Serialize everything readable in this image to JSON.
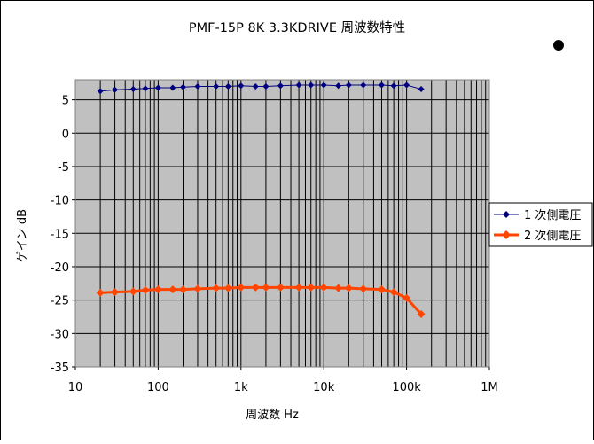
{
  "chart_data": {
    "type": "line",
    "title": "PMF-15P 8K  3.3KDRIVE 周波数特性",
    "xlabel": "周波数 Hz",
    "ylabel": "ゲイン dB",
    "x_scale": "log",
    "xlim": [
      10,
      1000000
    ],
    "ylim": [
      -35,
      8
    ],
    "x_tick_values": [
      10,
      100,
      1000,
      10000,
      100000,
      1000000
    ],
    "x_tick_labels": [
      "10",
      "100",
      "1k",
      "10k",
      "100k",
      "1M"
    ],
    "y_ticks": [
      5,
      0,
      -5,
      -10,
      -15,
      -20,
      -25,
      -30,
      -35
    ],
    "grid": true,
    "legend_position": "right",
    "x": [
      20,
      30,
      50,
      70,
      100,
      150,
      200,
      300,
      500,
      700,
      1000,
      1500,
      2000,
      3000,
      5000,
      7000,
      10000,
      15000,
      20000,
      30000,
      50000,
      70000,
      100000,
      150000
    ],
    "series": [
      {
        "name": "1 次側電圧",
        "color": "#000080",
        "marker": "diamond",
        "values": [
          6.3,
          6.5,
          6.6,
          6.7,
          6.8,
          6.8,
          6.9,
          7.0,
          7.0,
          7.0,
          7.1,
          7.0,
          7.0,
          7.1,
          7.2,
          7.2,
          7.2,
          7.1,
          7.2,
          7.2,
          7.2,
          7.1,
          7.2,
          6.6
        ]
      },
      {
        "name": "2 次側電圧",
        "color": "#ff4500",
        "marker": "diamond",
        "values": [
          -23.9,
          -23.8,
          -23.7,
          -23.5,
          -23.4,
          -23.4,
          -23.4,
          -23.3,
          -23.2,
          -23.2,
          -23.1,
          -23.1,
          -23.1,
          -23.1,
          -23.1,
          -23.1,
          -23.1,
          -23.2,
          -23.2,
          -23.3,
          -23.4,
          -23.8,
          -24.7,
          -27.1
        ]
      }
    ]
  },
  "page": {
    "background": "#ffffff",
    "plot_background": "#c0c0c0",
    "marker_black_dot": "#000000"
  }
}
